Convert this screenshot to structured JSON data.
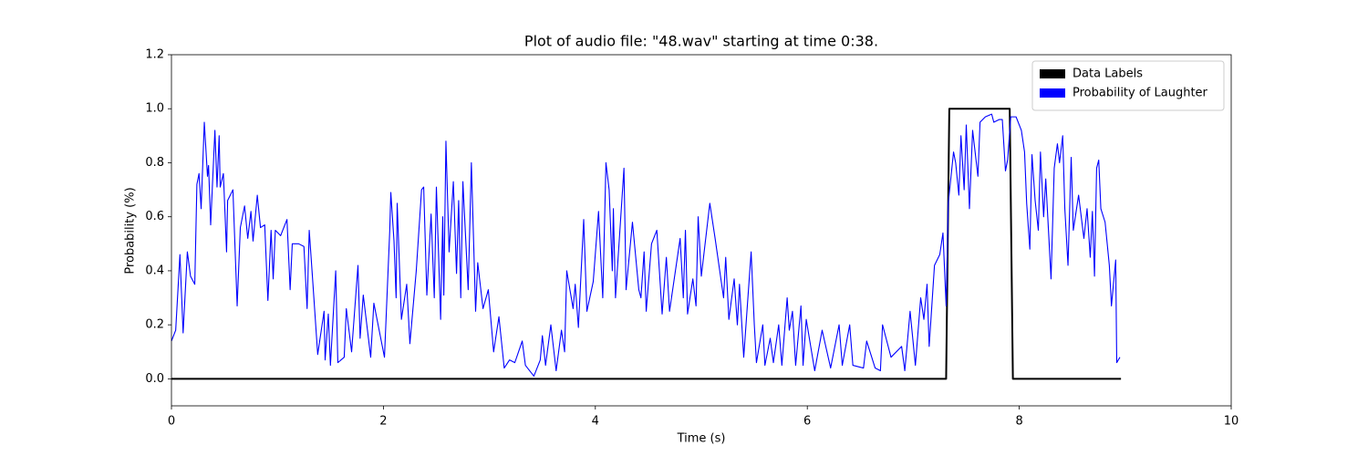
{
  "chart_data": {
    "type": "line",
    "title": "Plot of audio file: \"48.wav\" starting at time 0:38.",
    "x_label": "Time (s)",
    "y_label": "Probability (%)",
    "xlim": [
      0,
      10
    ],
    "xticks": [
      0,
      2,
      4,
      6,
      8,
      10
    ],
    "ylim": [
      -0.1,
      1.2
    ],
    "yticks": [
      {
        "value": 0,
        "label": "0.0"
      },
      0.2,
      0.4,
      0.6,
      0.8,
      {
        "value": 1,
        "label": "1.0"
      },
      1.2
    ],
    "grid": false,
    "legend": "upper right",
    "series": [
      {
        "name": "Data Labels",
        "color": "#000000",
        "x": [
          0,
          7.31,
          7.34,
          7.91,
          7.94,
          8.96
        ],
        "values": [
          0,
          0,
          1,
          1,
          0,
          0
        ]
      },
      {
        "name": "Probability of Laughter",
        "color": "#0000ff",
        "x": [
          0,
          0.04,
          0.08,
          0.11,
          0.15,
          0.18,
          0.22,
          0.24,
          0.26,
          0.28,
          0.31,
          0.34,
          0.35,
          0.37,
          0.41,
          0.43,
          0.45,
          0.46,
          0.49,
          0.52,
          0.53,
          0.58,
          0.62,
          0.65,
          0.69,
          0.72,
          0.75,
          0.77,
          0.81,
          0.84,
          0.88,
          0.91,
          0.94,
          0.96,
          0.98,
          1.03,
          1.09,
          1.12,
          1.14,
          1.2,
          1.25,
          1.28,
          1.3,
          1.33,
          1.38,
          1.44,
          1.45,
          1.48,
          1.5,
          1.55,
          1.57,
          1.63,
          1.65,
          1.7,
          1.76,
          1.78,
          1.81,
          1.88,
          1.91,
          2.01,
          2.06,
          2.07,
          2.1,
          2.12,
          2.13,
          2.17,
          2.22,
          2.25,
          2.31,
          2.36,
          2.38,
          2.41,
          2.45,
          2.48,
          2.5,
          2.54,
          2.56,
          2.57,
          2.59,
          2.62,
          2.66,
          2.69,
          2.71,
          2.73,
          2.75,
          2.8,
          2.83,
          2.87,
          2.89,
          2.94,
          2.99,
          3.04,
          3.09,
          3.14,
          3.19,
          3.24,
          3.31,
          3.34,
          3.42,
          3.48,
          3.5,
          3.53,
          3.58,
          3.63,
          3.68,
          3.71,
          3.73,
          3.79,
          3.81,
          3.84,
          3.89,
          3.92,
          3.98,
          4.03,
          4.07,
          4.1,
          4.13,
          4.16,
          4.17,
          4.19,
          4.27,
          4.29,
          4.35,
          4.41,
          4.43,
          4.46,
          4.48,
          4.53,
          4.58,
          4.63,
          4.67,
          4.7,
          4.8,
          4.83,
          4.85,
          4.87,
          4.92,
          4.95,
          4.97,
          5.0,
          5.08,
          5.13,
          5.21,
          5.23,
          5.26,
          5.31,
          5.34,
          5.36,
          5.4,
          5.47,
          5.5,
          5.52,
          5.58,
          5.6,
          5.65,
          5.68,
          5.73,
          5.76,
          5.81,
          5.83,
          5.86,
          5.89,
          5.94,
          5.96,
          5.99,
          6.07,
          6.14,
          6.22,
          6.3,
          6.33,
          6.4,
          6.43,
          6.53,
          6.56,
          6.64,
          6.69,
          6.71,
          6.79,
          6.89,
          6.92,
          6.97,
          7.02,
          7.07,
          7.1,
          7.13,
          7.15,
          7.2,
          7.25,
          7.28,
          7.31,
          7.33,
          7.38,
          7.4,
          7.43,
          7.45,
          7.48,
          7.5,
          7.53,
          7.56,
          7.61,
          7.63,
          7.68,
          7.74,
          7.76,
          7.81,
          7.84,
          7.87,
          7.89,
          7.92,
          7.97,
          8.02,
          8.05,
          8.07,
          8.1,
          8.12,
          8.15,
          8.18,
          8.2,
          8.23,
          8.25,
          8.3,
          8.33,
          8.36,
          8.38,
          8.41,
          8.43,
          8.46,
          8.49,
          8.51,
          8.56,
          8.61,
          8.64,
          8.67,
          8.69,
          8.71,
          8.73,
          8.75,
          8.77,
          8.81,
          8.85,
          8.87,
          8.91,
          8.92,
          8.95
        ],
        "values": [
          0.14,
          0.18,
          0.46,
          0.17,
          0.47,
          0.38,
          0.35,
          0.72,
          0.76,
          0.63,
          0.95,
          0.75,
          0.79,
          0.57,
          0.92,
          0.71,
          0.9,
          0.71,
          0.76,
          0.47,
          0.66,
          0.7,
          0.27,
          0.56,
          0.64,
          0.52,
          0.62,
          0.51,
          0.68,
          0.56,
          0.57,
          0.29,
          0.55,
          0.37,
          0.55,
          0.53,
          0.59,
          0.33,
          0.5,
          0.5,
          0.49,
          0.26,
          0.55,
          0.38,
          0.09,
          0.25,
          0.07,
          0.24,
          0.05,
          0.4,
          0.06,
          0.08,
          0.26,
          0.1,
          0.42,
          0.15,
          0.31,
          0.08,
          0.28,
          0.08,
          0.55,
          0.69,
          0.51,
          0.3,
          0.65,
          0.22,
          0.35,
          0.13,
          0.4,
          0.7,
          0.71,
          0.31,
          0.61,
          0.3,
          0.71,
          0.22,
          0.6,
          0.31,
          0.88,
          0.47,
          0.73,
          0.39,
          0.66,
          0.3,
          0.73,
          0.33,
          0.8,
          0.25,
          0.43,
          0.26,
          0.33,
          0.1,
          0.23,
          0.04,
          0.07,
          0.06,
          0.14,
          0.05,
          0.01,
          0.07,
          0.16,
          0.05,
          0.2,
          0.03,
          0.18,
          0.1,
          0.4,
          0.26,
          0.35,
          0.19,
          0.59,
          0.25,
          0.36,
          0.62,
          0.3,
          0.8,
          0.7,
          0.4,
          0.63,
          0.3,
          0.78,
          0.33,
          0.58,
          0.33,
          0.3,
          0.47,
          0.25,
          0.5,
          0.55,
          0.24,
          0.45,
          0.25,
          0.52,
          0.3,
          0.55,
          0.24,
          0.37,
          0.27,
          0.6,
          0.38,
          0.65,
          0.52,
          0.3,
          0.45,
          0.22,
          0.37,
          0.2,
          0.35,
          0.08,
          0.47,
          0.2,
          0.06,
          0.2,
          0.05,
          0.15,
          0.06,
          0.2,
          0.05,
          0.3,
          0.18,
          0.25,
          0.05,
          0.27,
          0.05,
          0.22,
          0.03,
          0.18,
          0.04,
          0.2,
          0.05,
          0.2,
          0.05,
          0.04,
          0.14,
          0.04,
          0.03,
          0.2,
          0.08,
          0.12,
          0.03,
          0.25,
          0.05,
          0.3,
          0.22,
          0.35,
          0.12,
          0.42,
          0.46,
          0.54,
          0.27,
          0.65,
          0.84,
          0.8,
          0.68,
          0.9,
          0.7,
          0.94,
          0.63,
          0.92,
          0.75,
          0.95,
          0.97,
          0.98,
          0.95,
          0.96,
          0.96,
          0.77,
          0.81,
          0.97,
          0.97,
          0.92,
          0.84,
          0.65,
          0.48,
          0.83,
          0.66,
          0.55,
          0.84,
          0.6,
          0.74,
          0.37,
          0.78,
          0.87,
          0.8,
          0.9,
          0.63,
          0.42,
          0.82,
          0.55,
          0.68,
          0.52,
          0.63,
          0.45,
          0.62,
          0.38,
          0.78,
          0.81,
          0.63,
          0.58,
          0.42,
          0.27,
          0.44,
          0.06,
          0.08
        ]
      }
    ]
  }
}
